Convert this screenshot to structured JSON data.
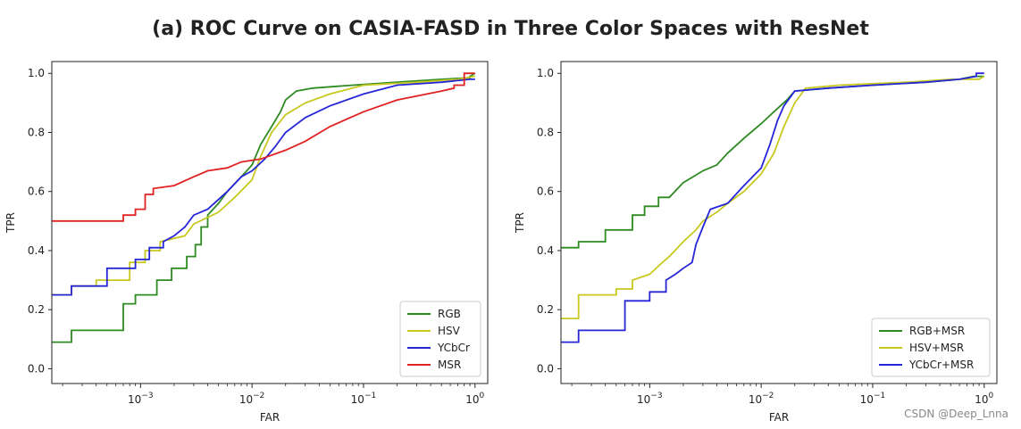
{
  "title": "(a) ROC Curve on CASIA-FASD in Three Color Spaces with ResNet",
  "watermark": "CSDN @Deep_Lnna",
  "chart_data": [
    {
      "type": "line",
      "xscale": "log",
      "xlabel": "FAR",
      "ylabel": "TPR",
      "xlim": [
        0.00016,
        1.3
      ],
      "ylim": [
        -0.05,
        1.04
      ],
      "xticks": [
        0.001,
        0.01,
        0.1,
        1
      ],
      "xtick_labels": [
        [
          "10",
          "−3"
        ],
        [
          "10",
          "−2"
        ],
        [
          "10",
          "−1"
        ],
        [
          "10",
          "0"
        ]
      ],
      "yticks": [
        0.0,
        0.2,
        0.4,
        0.6,
        0.8,
        1.0
      ],
      "ytick_labels": [
        "0.0",
        "0.2",
        "0.4",
        "0.6",
        "0.8",
        "1.0"
      ],
      "legend_position": "lower-right",
      "series": [
        {
          "name": "RGB",
          "color": "#2e8b22",
          "points": [
            [
              0.00016,
              0.09
            ],
            [
              0.00024,
              0.09
            ],
            [
              0.00024,
              0.13
            ],
            [
              0.0007,
              0.13
            ],
            [
              0.0007,
              0.22
            ],
            [
              0.0009,
              0.22
            ],
            [
              0.0009,
              0.25
            ],
            [
              0.0014,
              0.25
            ],
            [
              0.0014,
              0.3
            ],
            [
              0.0019,
              0.3
            ],
            [
              0.0019,
              0.34
            ],
            [
              0.0026,
              0.34
            ],
            [
              0.0026,
              0.38
            ],
            [
              0.0031,
              0.38
            ],
            [
              0.0031,
              0.42
            ],
            [
              0.0035,
              0.42
            ],
            [
              0.0035,
              0.48
            ],
            [
              0.004,
              0.48
            ],
            [
              0.004,
              0.52
            ],
            [
              0.005,
              0.56
            ],
            [
              0.006,
              0.6
            ],
            [
              0.008,
              0.65
            ],
            [
              0.01,
              0.69
            ],
            [
              0.012,
              0.76
            ],
            [
              0.015,
              0.82
            ],
            [
              0.018,
              0.87
            ],
            [
              0.02,
              0.91
            ],
            [
              0.025,
              0.94
            ],
            [
              0.035,
              0.95
            ],
            [
              0.08,
              0.96
            ],
            [
              0.2,
              0.97
            ],
            [
              0.5,
              0.98
            ],
            [
              0.9,
              0.985
            ],
            [
              0.9,
              0.99
            ],
            [
              1.0,
              1.0
            ]
          ]
        },
        {
          "name": "HSV",
          "color": "#c8c820",
          "points": [
            [
              0.00016,
              0.25
            ],
            [
              0.00024,
              0.25
            ],
            [
              0.00024,
              0.28
            ],
            [
              0.0004,
              0.28
            ],
            [
              0.0004,
              0.3
            ],
            [
              0.0008,
              0.3
            ],
            [
              0.0008,
              0.36
            ],
            [
              0.0011,
              0.36
            ],
            [
              0.0011,
              0.4
            ],
            [
              0.0015,
              0.4
            ],
            [
              0.0015,
              0.43
            ],
            [
              0.0025,
              0.45
            ],
            [
              0.003,
              0.49
            ],
            [
              0.005,
              0.53
            ],
            [
              0.007,
              0.58
            ],
            [
              0.01,
              0.64
            ],
            [
              0.012,
              0.72
            ],
            [
              0.015,
              0.8
            ],
            [
              0.02,
              0.86
            ],
            [
              0.03,
              0.9
            ],
            [
              0.05,
              0.93
            ],
            [
              0.1,
              0.96
            ],
            [
              0.3,
              0.97
            ],
            [
              0.7,
              0.98
            ],
            [
              1.0,
              0.99
            ]
          ]
        },
        {
          "name": "YCbCr",
          "color": "#2626d8",
          "points": [
            [
              0.00016,
              0.25
            ],
            [
              0.00024,
              0.25
            ],
            [
              0.00024,
              0.28
            ],
            [
              0.0005,
              0.28
            ],
            [
              0.0005,
              0.34
            ],
            [
              0.0009,
              0.34
            ],
            [
              0.0009,
              0.37
            ],
            [
              0.0012,
              0.37
            ],
            [
              0.0012,
              0.41
            ],
            [
              0.0016,
              0.41
            ],
            [
              0.0016,
              0.43
            ],
            [
              0.002,
              0.45
            ],
            [
              0.0025,
              0.48
            ],
            [
              0.003,
              0.52
            ],
            [
              0.004,
              0.54
            ],
            [
              0.006,
              0.6
            ],
            [
              0.008,
              0.65
            ],
            [
              0.01,
              0.67
            ],
            [
              0.013,
              0.71
            ],
            [
              0.016,
              0.75
            ],
            [
              0.02,
              0.8
            ],
            [
              0.03,
              0.85
            ],
            [
              0.05,
              0.89
            ],
            [
              0.1,
              0.93
            ],
            [
              0.2,
              0.96
            ],
            [
              0.5,
              0.97
            ],
            [
              0.9,
              0.98
            ],
            [
              1.0,
              0.98
            ]
          ]
        },
        {
          "name": "MSR",
          "color": "#e02222",
          "points": [
            [
              0.00016,
              0.5
            ],
            [
              0.0007,
              0.5
            ],
            [
              0.0007,
              0.52
            ],
            [
              0.0009,
              0.52
            ],
            [
              0.0009,
              0.54
            ],
            [
              0.0011,
              0.54
            ],
            [
              0.0011,
              0.59
            ],
            [
              0.0013,
              0.59
            ],
            [
              0.0013,
              0.61
            ],
            [
              0.002,
              0.62
            ],
            [
              0.003,
              0.65
            ],
            [
              0.004,
              0.67
            ],
            [
              0.006,
              0.68
            ],
            [
              0.008,
              0.7
            ],
            [
              0.012,
              0.71
            ],
            [
              0.02,
              0.74
            ],
            [
              0.03,
              0.77
            ],
            [
              0.05,
              0.82
            ],
            [
              0.1,
              0.87
            ],
            [
              0.2,
              0.91
            ],
            [
              0.5,
              0.94
            ],
            [
              0.65,
              0.95
            ],
            [
              0.65,
              0.96
            ],
            [
              0.8,
              0.96
            ],
            [
              0.8,
              1.0
            ],
            [
              1.0,
              1.0
            ]
          ]
        }
      ]
    },
    {
      "type": "line",
      "xscale": "log",
      "xlabel": "FAR",
      "ylabel": "TPR",
      "xlim": [
        0.00016,
        1.3
      ],
      "ylim": [
        -0.05,
        1.04
      ],
      "xticks": [
        0.001,
        0.01,
        0.1,
        1
      ],
      "xtick_labels": [
        [
          "10",
          "−3"
        ],
        [
          "10",
          "−2"
        ],
        [
          "10",
          "−1"
        ],
        [
          "10",
          "0"
        ]
      ],
      "yticks": [
        0.0,
        0.2,
        0.4,
        0.6,
        0.8,
        1.0
      ],
      "ytick_labels": [
        "0.0",
        "0.2",
        "0.4",
        "0.6",
        "0.8",
        "1.0"
      ],
      "legend_position": "lower-right",
      "series": [
        {
          "name": "RGB+MSR",
          "color": "#2e8b22",
          "points": [
            [
              0.00016,
              0.41
            ],
            [
              0.00023,
              0.41
            ],
            [
              0.00023,
              0.43
            ],
            [
              0.0004,
              0.43
            ],
            [
              0.0004,
              0.47
            ],
            [
              0.0007,
              0.47
            ],
            [
              0.0007,
              0.52
            ],
            [
              0.0009,
              0.52
            ],
            [
              0.0009,
              0.55
            ],
            [
              0.0012,
              0.55
            ],
            [
              0.0012,
              0.58
            ],
            [
              0.0015,
              0.58
            ],
            [
              0.002,
              0.63
            ],
            [
              0.003,
              0.67
            ],
            [
              0.004,
              0.69
            ],
            [
              0.005,
              0.73
            ],
            [
              0.007,
              0.78
            ],
            [
              0.01,
              0.83
            ],
            [
              0.013,
              0.87
            ],
            [
              0.017,
              0.91
            ],
            [
              0.02,
              0.94
            ],
            [
              0.04,
              0.95
            ],
            [
              0.1,
              0.96
            ],
            [
              0.3,
              0.97
            ],
            [
              0.6,
              0.98
            ],
            [
              0.8,
              0.99
            ],
            [
              1.0,
              0.99
            ]
          ]
        },
        {
          "name": "HSV+MSR",
          "color": "#c8c820",
          "points": [
            [
              0.00016,
              0.17
            ],
            [
              0.00023,
              0.17
            ],
            [
              0.00023,
              0.25
            ],
            [
              0.0005,
              0.25
            ],
            [
              0.0005,
              0.27
            ],
            [
              0.0007,
              0.27
            ],
            [
              0.0007,
              0.3
            ],
            [
              0.001,
              0.32
            ],
            [
              0.0013,
              0.36
            ],
            [
              0.0015,
              0.38
            ],
            [
              0.002,
              0.43
            ],
            [
              0.0026,
              0.47
            ],
            [
              0.003,
              0.5
            ],
            [
              0.004,
              0.53
            ],
            [
              0.005,
              0.56
            ],
            [
              0.007,
              0.6
            ],
            [
              0.01,
              0.66
            ],
            [
              0.013,
              0.73
            ],
            [
              0.016,
              0.82
            ],
            [
              0.02,
              0.9
            ],
            [
              0.025,
              0.95
            ],
            [
              0.05,
              0.96
            ],
            [
              0.2,
              0.97
            ],
            [
              0.5,
              0.98
            ],
            [
              0.9,
              0.98
            ],
            [
              1.0,
              0.99
            ]
          ]
        },
        {
          "name": "YCbCr+MSR",
          "color": "#2626d8",
          "points": [
            [
              0.00016,
              0.09
            ],
            [
              0.00023,
              0.09
            ],
            [
              0.00023,
              0.13
            ],
            [
              0.0006,
              0.13
            ],
            [
              0.0006,
              0.23
            ],
            [
              0.001,
              0.23
            ],
            [
              0.001,
              0.26
            ],
            [
              0.0014,
              0.26
            ],
            [
              0.0014,
              0.3
            ],
            [
              0.0017,
              0.32
            ],
            [
              0.002,
              0.34
            ],
            [
              0.0024,
              0.36
            ],
            [
              0.0026,
              0.42
            ],
            [
              0.003,
              0.48
            ],
            [
              0.0035,
              0.54
            ],
            [
              0.005,
              0.56
            ],
            [
              0.007,
              0.62
            ],
            [
              0.01,
              0.68
            ],
            [
              0.012,
              0.76
            ],
            [
              0.014,
              0.84
            ],
            [
              0.016,
              0.89
            ],
            [
              0.02,
              0.94
            ],
            [
              0.04,
              0.95
            ],
            [
              0.1,
              0.96
            ],
            [
              0.3,
              0.97
            ],
            [
              0.6,
              0.98
            ],
            [
              0.85,
              0.99
            ],
            [
              0.85,
              1.0
            ],
            [
              1.0,
              1.0
            ]
          ]
        }
      ]
    }
  ]
}
